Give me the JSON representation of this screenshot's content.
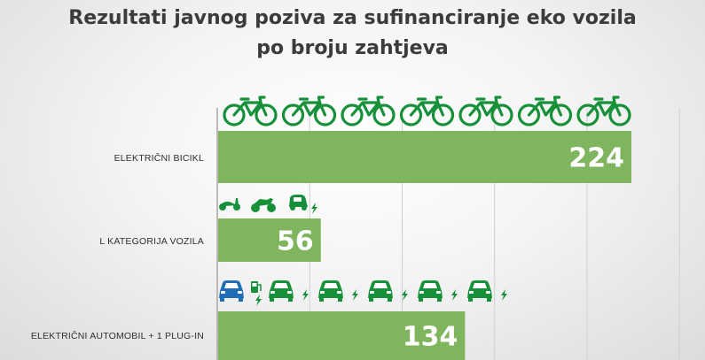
{
  "title": {
    "line1": "Rezultati javnog poziva za sufinanciranje eko vozila",
    "line2": "po broju zahtjeva"
  },
  "colors": {
    "bar": "#7fb55f",
    "icon_green": "#16913a",
    "icon_blue": "#1f6db5",
    "grid": "#cfcfcf",
    "axis": "#a6a6a6"
  },
  "chart_data": {
    "type": "bar",
    "orientation": "horizontal",
    "categories": [
      "ELEKTRIČNI BICIKL",
      "L KATEGORIJA VOZILA",
      "ELEKTRIČNI AUTOMOBIL + 1 PLUG-IN"
    ],
    "values": [
      224,
      56,
      134
    ],
    "data_labels": [
      "224",
      "56",
      "134"
    ],
    "title": "Rezultati javnog poziva za sufinanciranje eko vozila po broju zahtjeva",
    "xlabel": "",
    "ylabel": "",
    "xlim": [
      0,
      250
    ],
    "grid": true,
    "legend": "none",
    "icons": [
      [
        "bicycle-icon",
        "bicycle-icon",
        "bicycle-icon",
        "bicycle-icon",
        "bicycle-icon",
        "bicycle-icon",
        "bicycle-icon"
      ],
      [
        "scooter-icon",
        "motorcycle-icon",
        "microcar-icon",
        "charging-bolt-icon"
      ],
      [
        "plug-in-car-icon",
        "charging-station-icon",
        "electric-car-icon",
        "charging-bolt-icon",
        "electric-car-icon",
        "charging-bolt-icon",
        "electric-car-icon",
        "charging-bolt-icon",
        "electric-car-icon",
        "charging-bolt-icon",
        "electric-car-icon",
        "charging-bolt-icon"
      ]
    ]
  }
}
